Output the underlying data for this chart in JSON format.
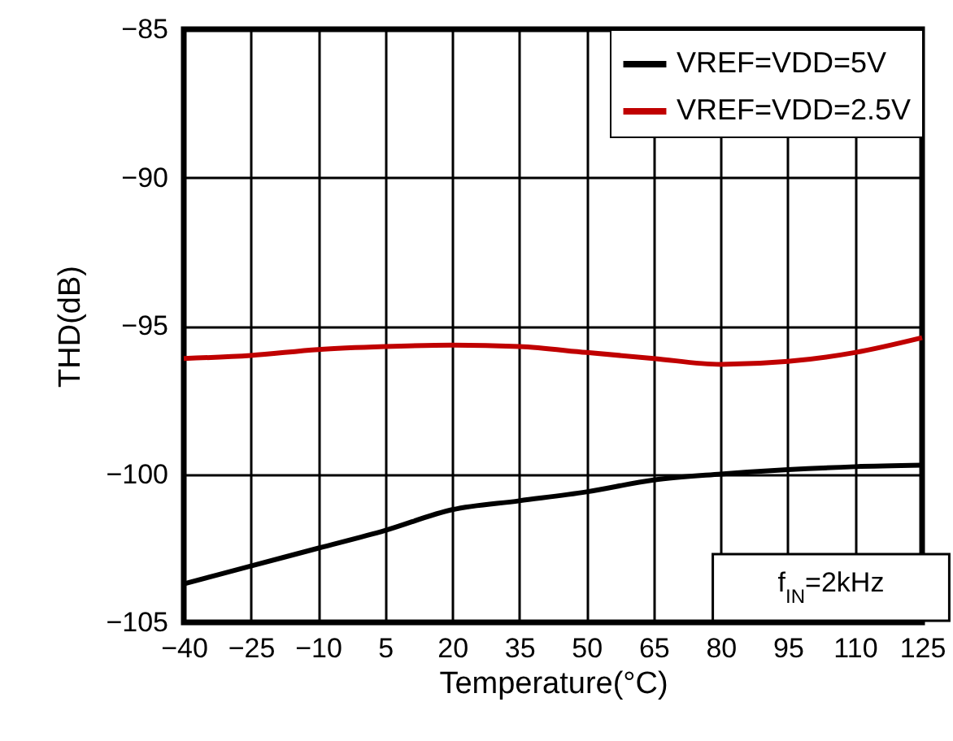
{
  "chart_data": {
    "type": "line",
    "xlabel": "Temperature(°C)",
    "ylabel": "THD(dB)",
    "x": [
      -40,
      -25,
      -10,
      5,
      20,
      35,
      50,
      65,
      80,
      95,
      110,
      125
    ],
    "series": [
      {
        "name": "VREF=VDD=5V",
        "color": "#000000",
        "values": [
          -103.7,
          -103.1,
          -102.5,
          -101.9,
          -101.2,
          -100.9,
          -100.6,
          -100.2,
          -100.0,
          -99.85,
          -99.75,
          -99.7
        ]
      },
      {
        "name": "VREF=VDD=2.5V",
        "color": "#c00000",
        "values": [
          -96.1,
          -96.0,
          -95.8,
          -95.7,
          -95.65,
          -95.7,
          -95.9,
          -96.1,
          -96.3,
          -96.2,
          -95.9,
          -95.4
        ]
      }
    ],
    "xlim": [
      -40,
      125
    ],
    "xticks": [
      -40,
      -25,
      -10,
      5,
      20,
      35,
      50,
      65,
      80,
      95,
      110,
      125
    ],
    "ylim": [
      -105,
      -85
    ],
    "yticks": [
      -105,
      -100,
      -95,
      -90,
      -85
    ],
    "grid": true,
    "legend": "top right",
    "marker": "none",
    "line_style": "solid",
    "annotations": [
      "f$_{IN}$=2kHz"
    ]
  }
}
